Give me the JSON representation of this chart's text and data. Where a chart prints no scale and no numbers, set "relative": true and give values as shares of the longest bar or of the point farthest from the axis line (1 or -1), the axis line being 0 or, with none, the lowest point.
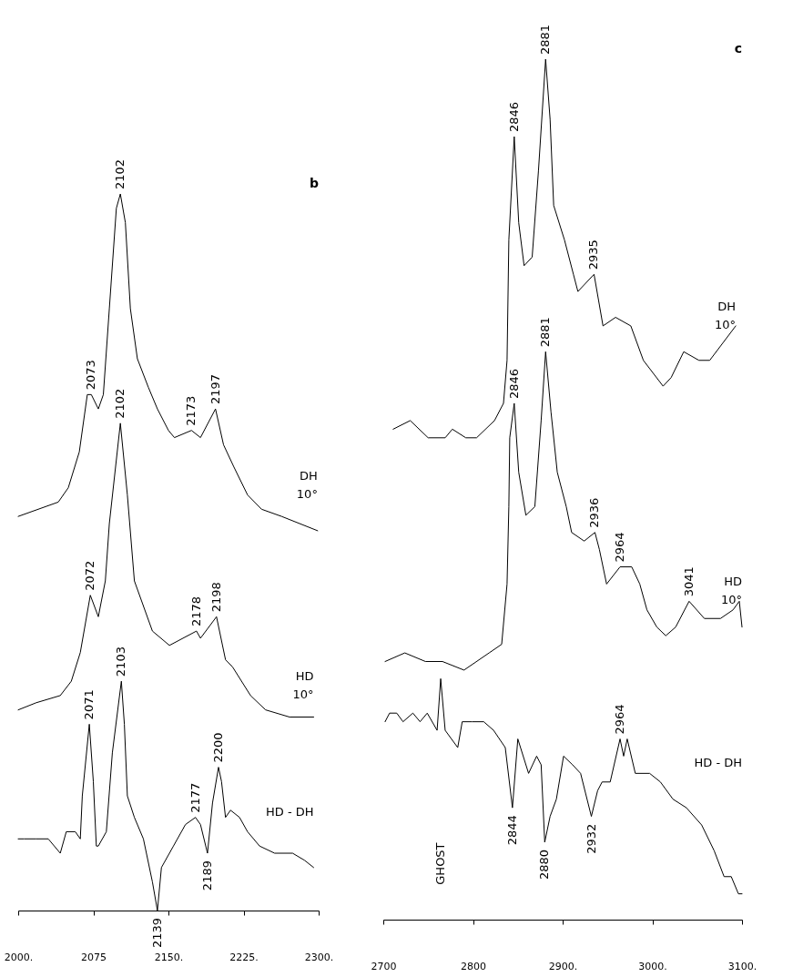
{
  "chart_data": [
    {
      "type": "line",
      "title": "b",
      "relative": true,
      "xlim": [
        2000,
        2300
      ],
      "xticks": [
        {
          "value": 2000,
          "label": "2000."
        },
        {
          "value": 2075,
          "label": "2075"
        },
        {
          "value": 2150,
          "label": "2150."
        },
        {
          "value": 2225,
          "label": "2225."
        },
        {
          "value": 2300,
          "label": "2300."
        }
      ],
      "series": [
        {
          "name": "DH\n10°",
          "color": "#000000",
          "x": [
            2000,
            2020,
            2040,
            2050,
            2061,
            2069,
            2073,
            2080,
            2085,
            2091,
            2098,
            2102,
            2107,
            2112,
            2119,
            2130,
            2139,
            2150,
            2156,
            2173,
            2182,
            2197,
            2205,
            2215,
            2229,
            2243,
            2263,
            2299
          ],
          "values": [
            0.55,
            0.56,
            0.57,
            0.59,
            0.64,
            0.72,
            0.72,
            0.7,
            0.72,
            0.84,
            0.98,
            1.0,
            0.96,
            0.84,
            0.77,
            0.73,
            0.7,
            0.67,
            0.66,
            0.67,
            0.66,
            0.7,
            0.65,
            0.62,
            0.58,
            0.56,
            0.55,
            0.53
          ]
        },
        {
          "name": "HD\n10°",
          "color": "#000000",
          "x": [
            2000,
            2018,
            2042,
            2053,
            2062,
            2072,
            2080,
            2087,
            2091,
            2102,
            2109,
            2116,
            2134,
            2151,
            2178,
            2182,
            2198,
            2207,
            2214,
            2232,
            2247,
            2271,
            2295
          ],
          "values": [
            0.28,
            0.29,
            0.3,
            0.32,
            0.36,
            0.44,
            0.41,
            0.46,
            0.54,
            0.68,
            0.58,
            0.46,
            0.39,
            0.37,
            0.39,
            0.38,
            0.41,
            0.35,
            0.34,
            0.3,
            0.28,
            0.27,
            0.27
          ]
        },
        {
          "name": "HD  -  DH",
          "color": "#000000",
          "x": [
            2000,
            2006,
            2018,
            2030,
            2042,
            2048,
            2057,
            2062,
            2064,
            2071,
            2075,
            2078,
            2080,
            2088,
            2094,
            2103,
            2106,
            2109,
            2116,
            2125,
            2134,
            2139,
            2143,
            2155,
            2167,
            2177,
            2182,
            2189,
            2194,
            2200,
            2203,
            2207,
            2212,
            2221,
            2229,
            2241,
            2256,
            2274,
            2286,
            2295
          ],
          "values": [
            0.1,
            0.1,
            0.1,
            0.1,
            0.08,
            0.11,
            0.11,
            0.1,
            0.16,
            0.26,
            0.18,
            0.09,
            0.09,
            0.11,
            0.22,
            0.32,
            0.26,
            0.16,
            0.13,
            0.1,
            0.04,
            0.0,
            0.06,
            0.09,
            0.12,
            0.13,
            0.12,
            0.08,
            0.15,
            0.2,
            0.18,
            0.13,
            0.14,
            0.13,
            0.11,
            0.09,
            0.08,
            0.08,
            0.07,
            0.06
          ]
        }
      ],
      "annotations": [
        {
          "text": "2102",
          "x": 2102,
          "y": 1.0
        },
        {
          "text": "2073",
          "x": 2073,
          "y": 0.72
        },
        {
          "text": "2173",
          "x": 2173,
          "y": 0.67
        },
        {
          "text": "2197",
          "x": 2197,
          "y": 0.7
        },
        {
          "text": "2102",
          "x": 2102,
          "y": 0.68
        },
        {
          "text": "2072",
          "x": 2072,
          "y": 0.44
        },
        {
          "text": "2178",
          "x": 2178,
          "y": 0.39
        },
        {
          "text": "2198",
          "x": 2198,
          "y": 0.41
        },
        {
          "text": "2071",
          "x": 2071,
          "y": 0.26
        },
        {
          "text": "2103",
          "x": 2103,
          "y": 0.32
        },
        {
          "text": "2177",
          "x": 2177,
          "y": 0.13
        },
        {
          "text": "2200",
          "x": 2200,
          "y": 0.2
        },
        {
          "text": "2189",
          "x": 2189,
          "y": 0.08
        },
        {
          "text": "2139",
          "x": 2139,
          "y": 0.0
        }
      ]
    },
    {
      "type": "line",
      "title": "c",
      "relative": true,
      "xlim": [
        2700,
        3100
      ],
      "xticks": [
        {
          "value": 2700,
          "label": "2700"
        },
        {
          "value": 2800,
          "label": "2800"
        },
        {
          "value": 2900,
          "label": "2900."
        },
        {
          "value": 3000,
          "label": "3000."
        },
        {
          "value": 3100,
          "label": "3100."
        }
      ],
      "series": [
        {
          "name": "DH\n10°",
          "color": "#000000",
          "x": [
            2711,
            2730,
            2750,
            2769,
            2777,
            2792,
            2804,
            2824,
            2834,
            2838,
            2840,
            2846,
            2851,
            2857,
            2866,
            2873,
            2881,
            2886,
            2890,
            2902,
            2912,
            2917,
            2935,
            2945,
            2959,
            2976,
            2990,
            3012,
            3021,
            3035,
            3052,
            3064,
            3093
          ],
          "values": [
            0.57,
            0.58,
            0.56,
            0.56,
            0.57,
            0.56,
            0.56,
            0.58,
            0.6,
            0.65,
            0.79,
            0.91,
            0.81,
            0.76,
            0.77,
            0.87,
            1.0,
            0.93,
            0.83,
            0.79,
            0.75,
            0.73,
            0.75,
            0.69,
            0.7,
            0.69,
            0.65,
            0.62,
            0.63,
            0.66,
            0.65,
            0.65,
            0.69
          ]
        },
        {
          "name": "HD\n10°",
          "color": "#000000",
          "x": [
            2702,
            2724,
            2747,
            2766,
            2790,
            2818,
            2832,
            2838,
            2840,
            2841,
            2846,
            2851,
            2859,
            2869,
            2876,
            2881,
            2887,
            2894,
            2904,
            2910,
            2924,
            2936,
            2941,
            2949,
            2964,
            2977,
            2986,
            2994,
            3005,
            3015,
            3026,
            3041,
            3058,
            3076,
            3090,
            3097,
            3100
          ],
          "values": [
            0.3,
            0.31,
            0.3,
            0.3,
            0.29,
            0.31,
            0.32,
            0.39,
            0.48,
            0.56,
            0.6,
            0.52,
            0.47,
            0.48,
            0.58,
            0.66,
            0.59,
            0.52,
            0.48,
            0.45,
            0.44,
            0.45,
            0.43,
            0.39,
            0.41,
            0.41,
            0.39,
            0.36,
            0.34,
            0.33,
            0.34,
            0.37,
            0.35,
            0.35,
            0.36,
            0.37,
            0.34
          ]
        },
        {
          "name": "HD - DH",
          "color": "#000000",
          "x": [
            2702,
            2707,
            2715,
            2722,
            2733,
            2741,
            2749,
            2760,
            2764,
            2769,
            2783,
            2788,
            2799,
            2812,
            2823,
            2836,
            2844,
            2850,
            2862,
            2871,
            2876,
            2880,
            2886,
            2893,
            2901,
            2911,
            2920,
            2932,
            2939,
            2944,
            2953,
            2964,
            2968,
            2972,
            2981,
            2997,
            3009,
            3023,
            3038,
            3055,
            3069,
            3080,
            3088,
            3096,
            3100
          ],
          "values": [
            0.23,
            0.24,
            0.24,
            0.23,
            0.24,
            0.23,
            0.24,
            0.22,
            0.28,
            0.22,
            0.2,
            0.23,
            0.23,
            0.23,
            0.22,
            0.2,
            0.13,
            0.21,
            0.17,
            0.19,
            0.18,
            0.09,
            0.12,
            0.14,
            0.19,
            0.18,
            0.17,
            0.12,
            0.15,
            0.16,
            0.16,
            0.21,
            0.19,
            0.21,
            0.17,
            0.17,
            0.16,
            0.14,
            0.13,
            0.11,
            0.08,
            0.05,
            0.05,
            0.03,
            0.03
          ]
        }
      ],
      "annotations": [
        {
          "text": "2846",
          "x": 2846,
          "y": 0.91
        },
        {
          "text": "2881",
          "x": 2881,
          "y": 1.0
        },
        {
          "text": "2935",
          "x": 2935,
          "y": 0.75
        },
        {
          "text": "2846",
          "x": 2846,
          "y": 0.6
        },
        {
          "text": "2881",
          "x": 2881,
          "y": 0.66
        },
        {
          "text": "2936",
          "x": 2936,
          "y": 0.45
        },
        {
          "text": "2964",
          "x": 2964,
          "y": 0.41
        },
        {
          "text": "3041",
          "x": 3041,
          "y": 0.37
        },
        {
          "text": "2964",
          "x": 2964,
          "y": 0.21
        },
        {
          "text": "2844",
          "x": 2844,
          "y": 0.13
        },
        {
          "text": "2880",
          "x": 2880,
          "y": 0.09
        },
        {
          "text": "2932",
          "x": 2932,
          "y": 0.12
        },
        "GHOST"
      ]
    }
  ]
}
